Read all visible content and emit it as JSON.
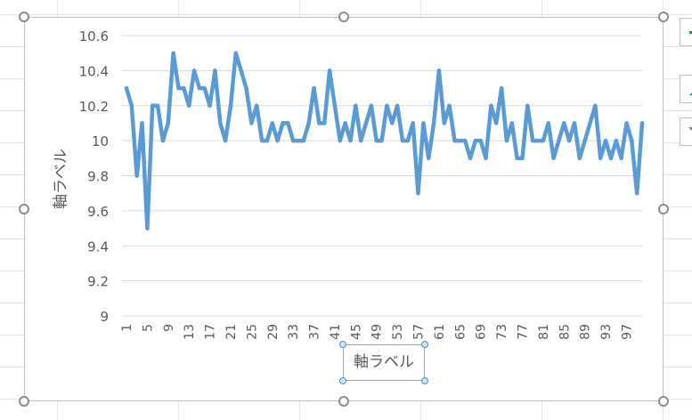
{
  "colors": {
    "series": "#5b9bd5",
    "grid": "#d9d9d9",
    "text": "#595959",
    "accent": "#4a90c8"
  },
  "chart_data": {
    "type": "line",
    "xlabel": "軸ラベル",
    "ylabel": "軸ラベル",
    "ylim": [
      9,
      10.6
    ],
    "yticks": [
      "9",
      "9.2",
      "9.4",
      "9.6",
      "9.8",
      "10",
      "10.2",
      "10.4",
      "10.6"
    ],
    "xtick_labels": [
      "1",
      "5",
      "9",
      "13",
      "17",
      "21",
      "25",
      "29",
      "33",
      "37",
      "41",
      "45",
      "49",
      "53",
      "57",
      "61",
      "65",
      "69",
      "73",
      "77",
      "81",
      "85",
      "89",
      "93",
      "97"
    ],
    "grid": true,
    "legend": "none",
    "x": [
      1,
      2,
      3,
      4,
      5,
      6,
      7,
      8,
      9,
      10,
      11,
      12,
      13,
      14,
      15,
      16,
      17,
      18,
      19,
      20,
      21,
      22,
      23,
      24,
      25,
      26,
      27,
      28,
      29,
      30,
      31,
      32,
      33,
      34,
      35,
      36,
      37,
      38,
      39,
      40,
      41,
      42,
      43,
      44,
      45,
      46,
      47,
      48,
      49,
      50,
      51,
      52,
      53,
      54,
      55,
      56,
      57,
      58,
      59,
      60,
      61,
      62,
      63,
      64,
      65,
      66,
      67,
      68,
      69,
      70,
      71,
      72,
      73,
      74,
      75,
      76,
      77,
      78,
      79,
      80,
      81,
      82,
      83,
      84,
      85,
      86,
      87,
      88,
      89,
      90,
      91,
      92,
      93,
      94,
      95,
      96,
      97,
      98,
      99,
      100
    ],
    "series": [
      {
        "values": [
          10.3,
          10.2,
          9.8,
          10.1,
          9.5,
          10.2,
          10.2,
          10.0,
          10.1,
          10.5,
          10.3,
          10.3,
          10.2,
          10.4,
          10.3,
          10.3,
          10.2,
          10.4,
          10.1,
          10.0,
          10.2,
          10.5,
          10.4,
          10.3,
          10.1,
          10.2,
          10.0,
          10.0,
          10.1,
          10.0,
          10.1,
          10.1,
          10.0,
          10.0,
          10.0,
          10.1,
          10.3,
          10.1,
          10.1,
          10.4,
          10.2,
          10.0,
          10.1,
          10.0,
          10.2,
          10.0,
          10.1,
          10.2,
          10.0,
          10.0,
          10.2,
          10.1,
          10.2,
          10.0,
          10.0,
          10.1,
          9.7,
          10.1,
          9.9,
          10.1,
          10.4,
          10.1,
          10.2,
          10.0,
          10.0,
          10.0,
          9.9,
          10.0,
          10.0,
          9.9,
          10.2,
          10.1,
          10.3,
          10.0,
          10.1,
          9.9,
          9.9,
          10.2,
          10.0,
          10.0,
          10.0,
          10.1,
          9.9,
          10.0,
          10.1,
          10.0,
          10.1,
          9.9,
          10.0,
          10.1,
          10.2,
          9.9,
          10.0,
          9.9,
          10.0,
          9.9,
          10.1,
          10.0,
          9.7,
          10.1
        ]
      }
    ]
  }
}
